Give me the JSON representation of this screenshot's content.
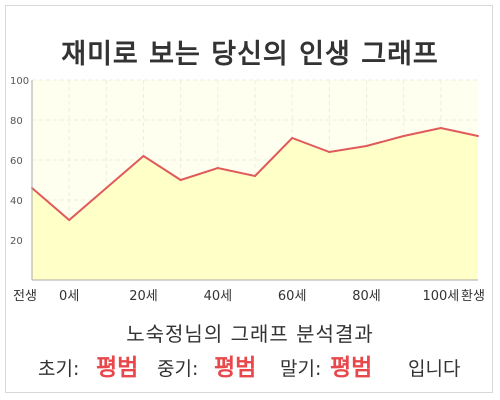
{
  "title": "재미로 보는 당신의 인생 그래프",
  "chart_data": {
    "type": "area",
    "categories": [
      "전생",
      "0세",
      "20세",
      "40세",
      "60세",
      "80세",
      "100세",
      "환생"
    ],
    "x": [
      "전생",
      "0세",
      "",
      "20세",
      "",
      "40세",
      "",
      "60세",
      "",
      "80세",
      "",
      "100세",
      "환생"
    ],
    "values": [
      46,
      30,
      46,
      62,
      50,
      56,
      52,
      71,
      64,
      67,
      72,
      76,
      72
    ],
    "ylim": [
      0,
      100
    ],
    "yticks": [
      20,
      40,
      60,
      80,
      100
    ],
    "grid": true,
    "colors": {
      "line": "#e05a5a",
      "fill": "#ffffc8",
      "plot_bg": "#fffff0",
      "grid": "#eeeedd",
      "axis": "#aaaaaa"
    }
  },
  "result": {
    "title": "노숙정님의 그래프 분석결과",
    "early_label": "초기:",
    "early_value": "평범",
    "mid_label": "중기:",
    "mid_value": "평범",
    "late_label": "말기:",
    "late_value": "평범",
    "ending": "입니다"
  }
}
